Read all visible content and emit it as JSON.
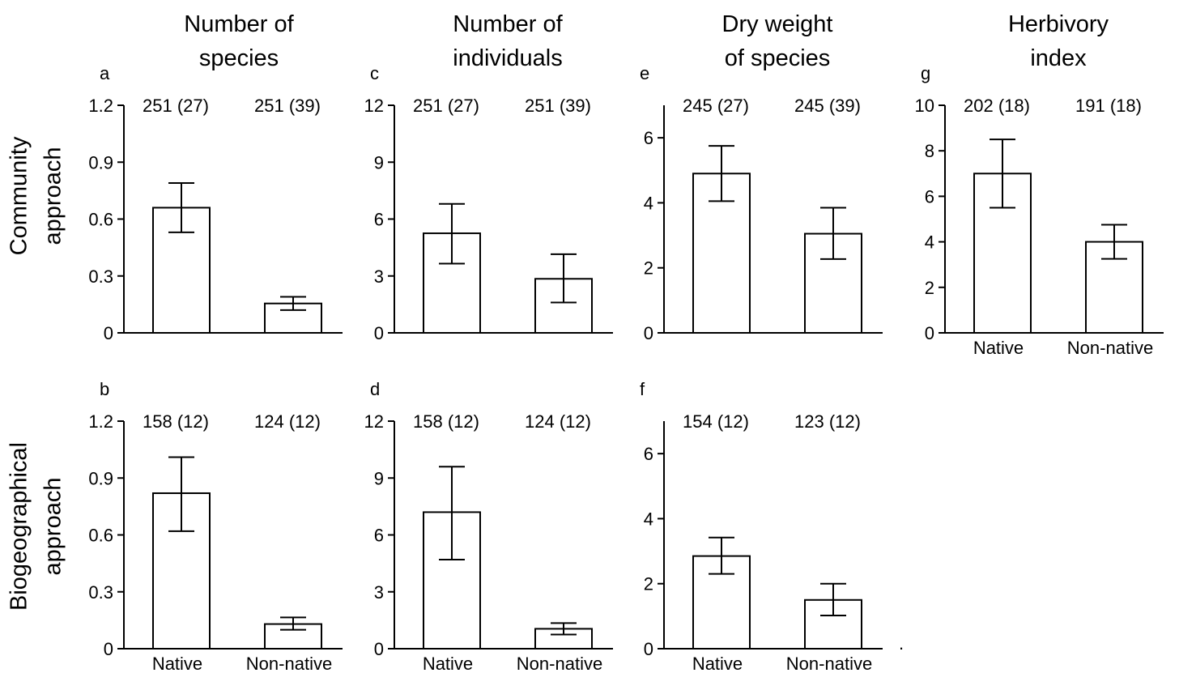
{
  "column_titles": [
    [
      "Number of",
      "species"
    ],
    [
      "Number of",
      "individuals"
    ],
    [
      "Dry weight",
      "of species"
    ],
    [
      "Herbivory",
      "index"
    ]
  ],
  "row_titles": [
    [
      "Community",
      "approach"
    ],
    [
      "Biogeographical",
      "approach"
    ]
  ],
  "chart_data": [
    {
      "panel": "a",
      "type": "bar",
      "categories": [
        "Native",
        "Non-native"
      ],
      "show_categories": false,
      "values": [
        0.66,
        0.155
      ],
      "err_low": [
        0.53,
        0.12
      ],
      "err_high": [
        0.79,
        0.19
      ],
      "annotations": [
        "251 (27)",
        "251 (39)"
      ],
      "ylim": [
        0,
        1.2
      ],
      "yticks": [
        0,
        0.3,
        0.6,
        0.9,
        1.2
      ],
      "ytick_labels": [
        "0",
        "0.3",
        "0.6",
        "0.9",
        "1.2"
      ]
    },
    {
      "panel": "c",
      "type": "bar",
      "categories": [
        "Native",
        "Non-native"
      ],
      "show_categories": false,
      "values": [
        5.25,
        2.85
      ],
      "err_low": [
        3.65,
        1.6
      ],
      "err_high": [
        6.8,
        4.15
      ],
      "annotations": [
        "251 (27)",
        "251 (39)"
      ],
      "ylim": [
        0,
        12
      ],
      "yticks": [
        0,
        3,
        6,
        9,
        12
      ],
      "ytick_labels": [
        "0",
        "3",
        "6",
        "9",
        "12"
      ]
    },
    {
      "panel": "e",
      "type": "bar",
      "categories": [
        "Native",
        "Non-native"
      ],
      "show_categories": false,
      "values": [
        4.9,
        3.05
      ],
      "err_low": [
        4.05,
        2.27
      ],
      "err_high": [
        5.75,
        3.85
      ],
      "annotations": [
        "245 (27)",
        "245 (39)"
      ],
      "ylim": [
        0,
        7
      ],
      "yticks": [
        0,
        2,
        4,
        6
      ],
      "ytick_labels": [
        "0",
        "2",
        "4",
        "6"
      ]
    },
    {
      "panel": "g",
      "type": "bar",
      "categories": [
        "Native",
        "Non-native"
      ],
      "show_categories": true,
      "values": [
        7.0,
        4.0
      ],
      "err_low": [
        5.5,
        3.25
      ],
      "err_high": [
        8.5,
        4.75
      ],
      "annotations": [
        "202 (18)",
        "191 (18)"
      ],
      "ylim": [
        0,
        10
      ],
      "yticks": [
        0,
        2,
        4,
        6,
        8,
        10
      ],
      "ytick_labels": [
        "0",
        "2",
        "4",
        "6",
        "8",
        "10"
      ]
    },
    {
      "panel": "b",
      "type": "bar",
      "categories": [
        "Native",
        "Non-native"
      ],
      "show_categories": true,
      "values": [
        0.82,
        0.13
      ],
      "err_low": [
        0.62,
        0.1
      ],
      "err_high": [
        1.01,
        0.165
      ],
      "annotations": [
        "158 (12)",
        "124 (12)"
      ],
      "ylim": [
        0,
        1.2
      ],
      "yticks": [
        0,
        0.3,
        0.6,
        0.9,
        1.2
      ],
      "ytick_labels": [
        "0",
        "0.3",
        "0.6",
        "0.9",
        "1.2"
      ]
    },
    {
      "panel": "d",
      "type": "bar",
      "categories": [
        "Native",
        "Non-native"
      ],
      "show_categories": true,
      "values": [
        7.2,
        1.05
      ],
      "err_low": [
        4.7,
        0.75
      ],
      "err_high": [
        9.6,
        1.35
      ],
      "annotations": [
        "158 (12)",
        "124 (12)"
      ],
      "ylim": [
        0,
        12
      ],
      "yticks": [
        0,
        3,
        6,
        9,
        12
      ],
      "ytick_labels": [
        "0",
        "3",
        "6",
        "9",
        "12"
      ]
    },
    {
      "panel": "f",
      "type": "bar",
      "categories": [
        "Native",
        "Non-native"
      ],
      "show_categories": true,
      "values": [
        2.85,
        1.5
      ],
      "err_low": [
        2.3,
        1.02
      ],
      "err_high": [
        3.42,
        2.0
      ],
      "annotations": [
        "154 (12)",
        "123 (12)"
      ],
      "ylim": [
        0,
        7
      ],
      "yticks": [
        0,
        2,
        4,
        6
      ],
      "ytick_labels": [
        "0",
        "2",
        "4",
        "6"
      ]
    }
  ]
}
